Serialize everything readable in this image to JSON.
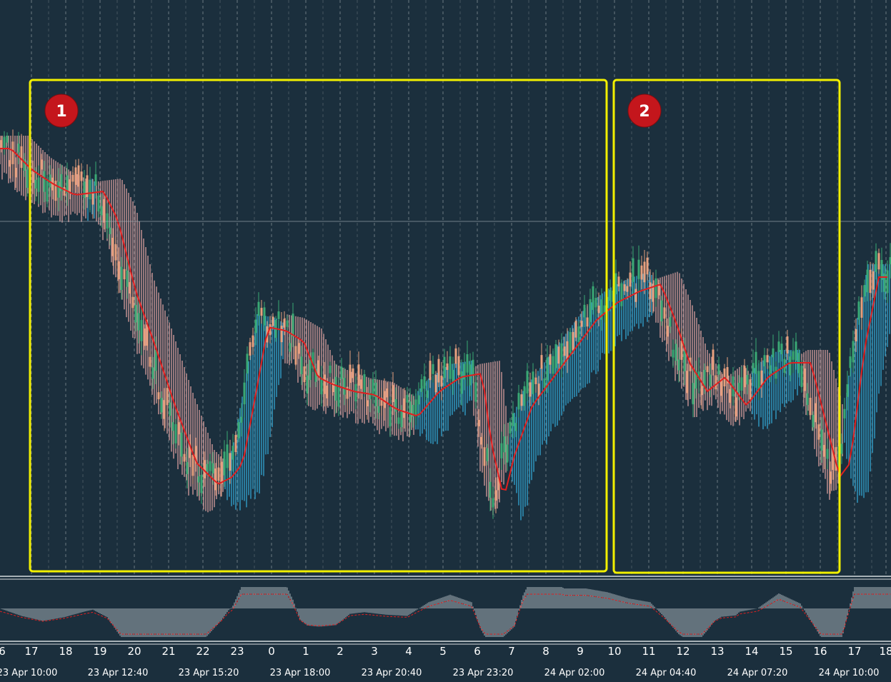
{
  "colors": {
    "background": "#1b2f3d",
    "grid": "#ffffff",
    "bull_candle": "#3aa874",
    "bear_candle": "#e8a07e",
    "cloud_bull": "#36b1e0",
    "cloud_bear": "#e9a9a6",
    "moving_average": "#e02020",
    "highlight_box": "#f2f000",
    "marker": "#c4161c",
    "text": "#ffffff"
  },
  "annotations": {
    "markers": [
      {
        "label": "1"
      },
      {
        "label": "2"
      }
    ]
  },
  "chart_data": {
    "type": "candlestick",
    "horizontal_line": true,
    "hour_labels": [
      "6",
      "17",
      "18",
      "19",
      "20",
      "21",
      "22",
      "23",
      "0",
      "1",
      "2",
      "3",
      "4",
      "5",
      "6",
      "7",
      "8",
      "9",
      "10",
      "11",
      "12",
      "13",
      "14",
      "15",
      "16",
      "17",
      "18"
    ],
    "date_labels": [
      "23 Apr 10:00",
      "23 Apr 12:40",
      "23 Apr 15:20",
      "23 Apr 18:00",
      "23 Apr 20:40",
      "23 Apr 23:20",
      "24 Apr 02:00",
      "24 Apr 04:40",
      "24 Apr 07:20",
      "24 Apr 10:00"
    ],
    "indicators": [
      "ichimoku cloud",
      "moving average",
      "oscillator histogram"
    ]
  }
}
